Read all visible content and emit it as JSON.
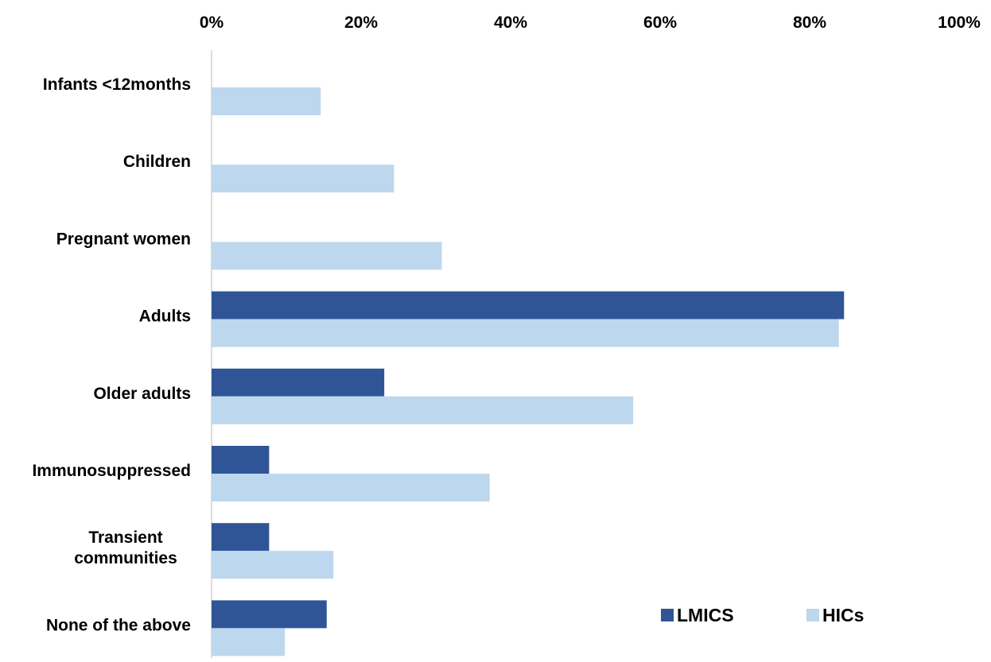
{
  "chart_data": {
    "type": "bar",
    "orientation": "horizontal",
    "categories": [
      "Infants <12months",
      "Children",
      "Pregnant women",
      "Adults",
      "Older adults",
      "Immunosuppressed",
      "Transient communities",
      "None of the above"
    ],
    "series": [
      {
        "name": "LMICS",
        "color": "#2F5597",
        "values": [
          0,
          0,
          0,
          84.6,
          23.1,
          7.7,
          7.7,
          15.4
        ]
      },
      {
        "name": "HICs",
        "color": "#BDD7EE",
        "values": [
          14.6,
          24.4,
          30.8,
          83.9,
          56.4,
          37.2,
          16.3,
          9.8
        ]
      }
    ],
    "x_ticks": [
      "0%",
      "20%",
      "40%",
      "60%",
      "80%",
      "100%"
    ],
    "xlim": [
      0,
      100
    ],
    "x_axis_position": "top",
    "grid": false,
    "legend_position": "bottom-right",
    "title": "",
    "xlabel": "",
    "ylabel": ""
  }
}
